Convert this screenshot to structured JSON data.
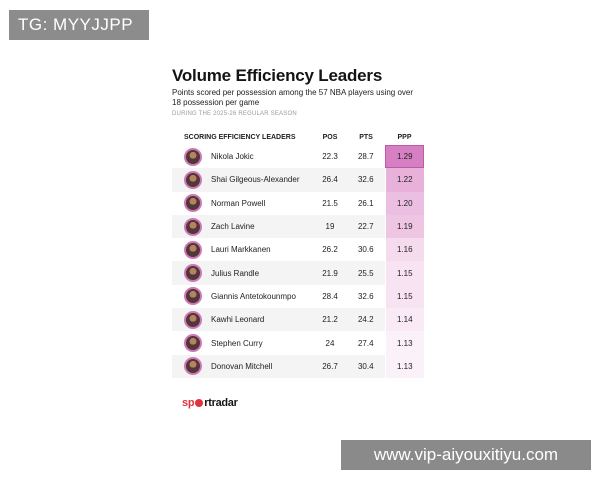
{
  "watermarks": {
    "tag": "TG: MYYJJPP",
    "url": "www.vip-aiyouxitiyu.com"
  },
  "card": {
    "title": "Volume Efficiency Leaders",
    "subtitle": "Points scored per possession among the 57 NBA players using over 18 possession per game",
    "note": "DURING THE 2025-26 REGULAR SEASON",
    "columns": {
      "player": "SCORING EFFICIENCY LEADERS",
      "pos": "POS",
      "pts": "PTS",
      "ppp": "PPP"
    },
    "rows": [
      {
        "name": "Nikola Jokic",
        "pos": "22.3",
        "pts": "28.7",
        "ppp": "1.29",
        "ppp_value": 1.29
      },
      {
        "name": "Shai Gilgeous-Alexander",
        "pos": "26.4",
        "pts": "32.6",
        "ppp": "1.22",
        "ppp_value": 1.22
      },
      {
        "name": "Norman Powell",
        "pos": "21.5",
        "pts": "26.1",
        "ppp": "1.20",
        "ppp_value": 1.2
      },
      {
        "name": "Zach Lavine",
        "pos": "19",
        "pts": "22.7",
        "ppp": "1.19",
        "ppp_value": 1.19
      },
      {
        "name": "Lauri Markkanen",
        "pos": "26.2",
        "pts": "30.6",
        "ppp": "1.16",
        "ppp_value": 1.16
      },
      {
        "name": "Julius Randle",
        "pos": "21.9",
        "pts": "25.5",
        "ppp": "1.15",
        "ppp_value": 1.15
      },
      {
        "name": "Giannis Antetokounmpo",
        "pos": "28.4",
        "pts": "32.6",
        "ppp": "1.15",
        "ppp_value": 1.15
      },
      {
        "name": "Kawhi Leonard",
        "pos": "21.2",
        "pts": "24.2",
        "ppp": "1.14",
        "ppp_value": 1.14
      },
      {
        "name": "Stephen Curry",
        "pos": "24",
        "pts": "27.4",
        "ppp": "1.13",
        "ppp_value": 1.13
      },
      {
        "name": "Donovan Mitchell",
        "pos": "26.7",
        "pts": "30.4",
        "ppp": "1.13",
        "ppp_value": 1.13
      }
    ],
    "colors": {
      "ppp_high": "#d77fc3",
      "ppp_low": "#fbf1f8",
      "row_alt": "#f4f4f4",
      "avatar_ring": "#cf78b8"
    },
    "icons": {
      "avatar": "player-headshot"
    },
    "logo": {
      "part1": "sp",
      "part2": "rtradar"
    }
  }
}
